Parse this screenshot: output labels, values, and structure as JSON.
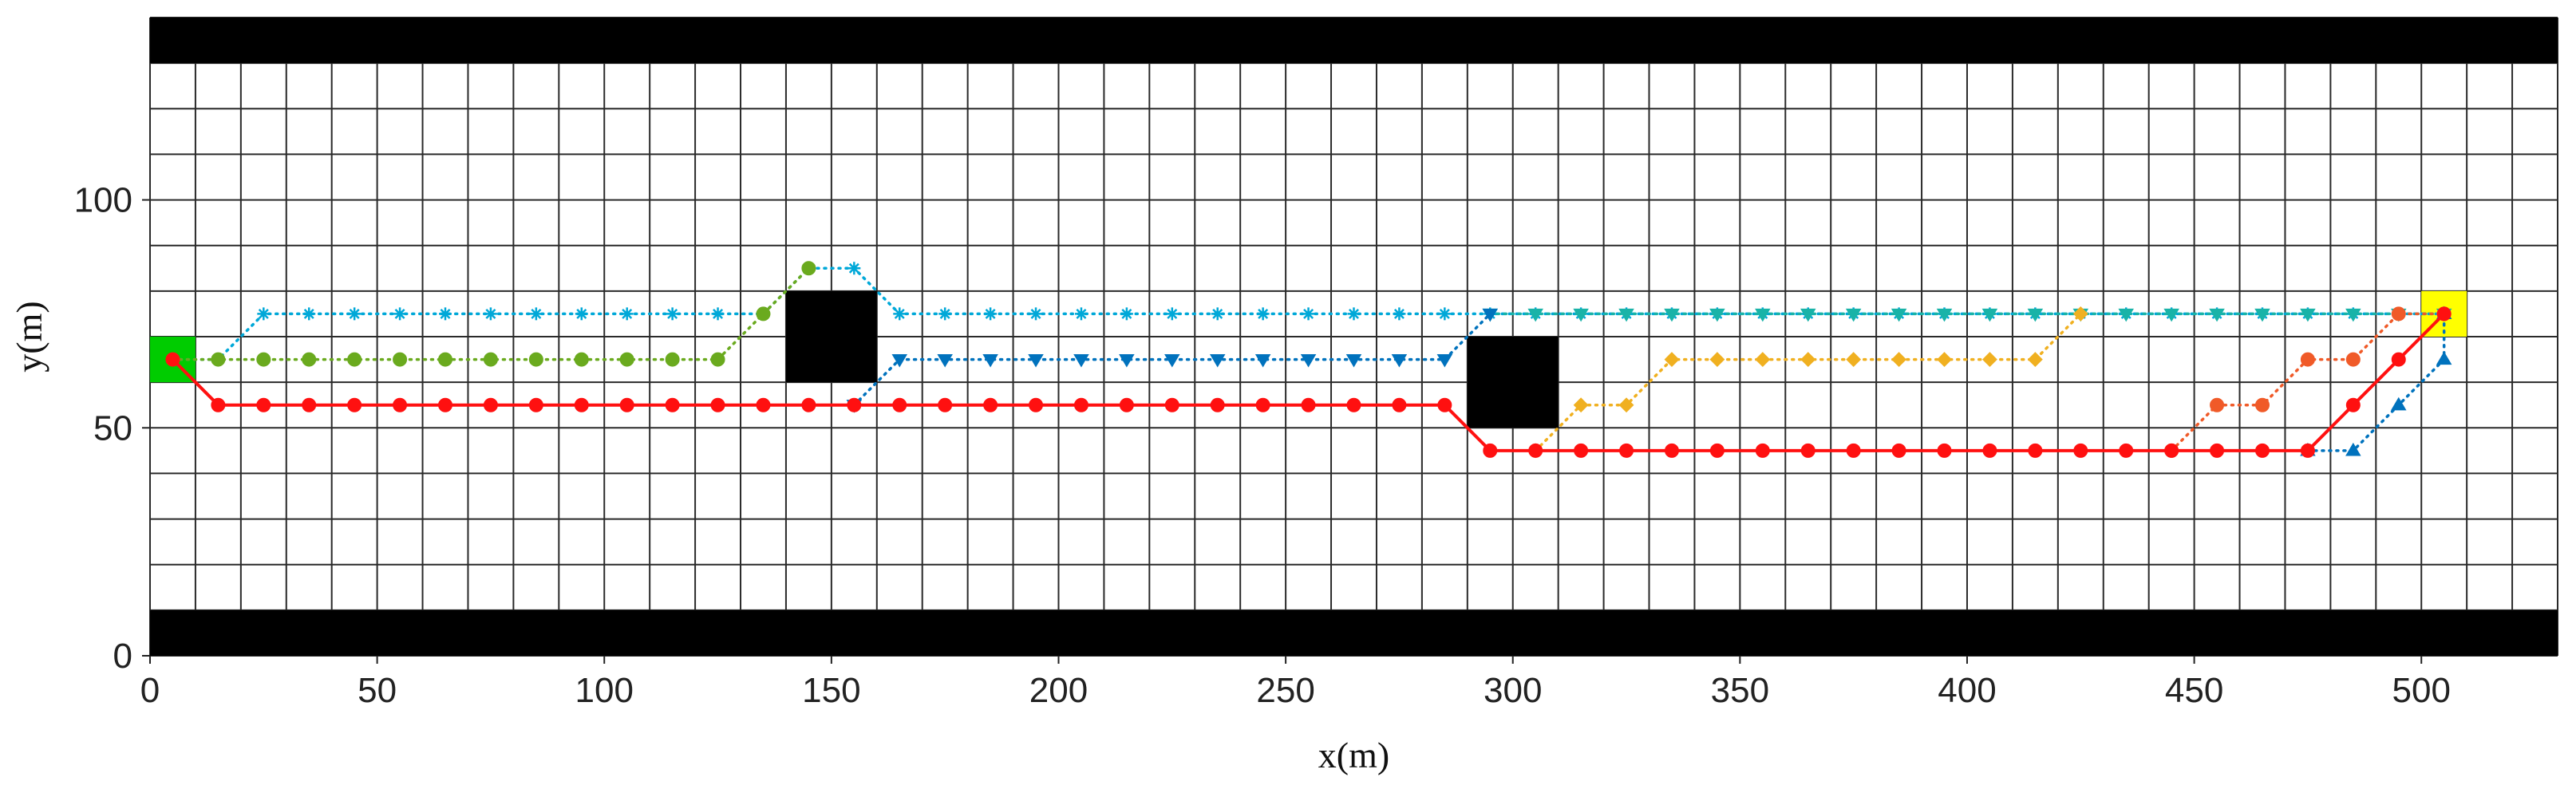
{
  "chart_data": {
    "type": "line",
    "title": "",
    "xlabel": "x(m)",
    "ylabel": "y(m)",
    "xlim": [
      0,
      530
    ],
    "ylim": [
      0,
      140
    ],
    "grid": true,
    "grid_step": 10,
    "xticks": [
      0,
      50,
      100,
      150,
      200,
      250,
      300,
      350,
      400,
      450,
      500
    ],
    "yticks": [
      0,
      50,
      100
    ],
    "obstacles": [
      {
        "name": "bottom-wall",
        "x": [
          0,
          530
        ],
        "y": [
          0,
          10
        ],
        "color": "#000000"
      },
      {
        "name": "top-wall",
        "x": [
          0,
          530
        ],
        "y": [
          130,
          140
        ],
        "color": "#000000"
      },
      {
        "name": "obstacle-1",
        "x": [
          140,
          160
        ],
        "y": [
          60,
          80
        ],
        "color": "#000000"
      },
      {
        "name": "obstacle-2",
        "x": [
          290,
          310
        ],
        "y": [
          50,
          70
        ],
        "color": "#000000"
      }
    ],
    "start": {
      "x": [
        0,
        10
      ],
      "y": [
        60,
        70
      ],
      "color": "#00cc00"
    },
    "goal": {
      "x": [
        500,
        510
      ],
      "y": [
        70,
        80
      ],
      "color": "#ffff00"
    },
    "series": [
      {
        "color": "#00a8d8",
        "style": "dotted",
        "marker": "star",
        "points": [
          [
            5,
            65
          ],
          [
            15,
            65
          ],
          [
            25,
            75
          ],
          [
            35,
            75
          ],
          [
            45,
            75
          ],
          [
            55,
            75
          ],
          [
            65,
            75
          ],
          [
            75,
            75
          ],
          [
            85,
            75
          ],
          [
            95,
            75
          ],
          [
            105,
            75
          ],
          [
            115,
            75
          ],
          [
            125,
            75
          ],
          [
            135,
            75
          ],
          [
            145,
            85
          ],
          [
            155,
            85
          ],
          [
            165,
            75
          ],
          [
            175,
            75
          ],
          [
            185,
            75
          ],
          [
            195,
            75
          ],
          [
            205,
            75
          ],
          [
            215,
            75
          ],
          [
            225,
            75
          ],
          [
            235,
            75
          ],
          [
            245,
            75
          ],
          [
            255,
            75
          ],
          [
            265,
            75
          ],
          [
            275,
            75
          ],
          [
            285,
            75
          ],
          [
            295,
            75
          ],
          [
            305,
            75
          ],
          [
            315,
            75
          ],
          [
            325,
            75
          ],
          [
            335,
            75
          ],
          [
            345,
            75
          ],
          [
            355,
            75
          ],
          [
            365,
            75
          ],
          [
            375,
            75
          ],
          [
            385,
            75
          ],
          [
            395,
            75
          ],
          [
            405,
            75
          ],
          [
            415,
            75
          ],
          [
            425,
            75
          ],
          [
            435,
            75
          ],
          [
            445,
            75
          ],
          [
            455,
            75
          ],
          [
            465,
            75
          ],
          [
            475,
            75
          ],
          [
            485,
            75
          ],
          [
            495,
            75
          ],
          [
            505,
            75
          ]
        ]
      },
      {
        "color": "#19b3a8",
        "style": "dotted",
        "marker": "triangle-down",
        "points": [
          [
            295,
            75
          ],
          [
            305,
            75
          ],
          [
            315,
            75
          ],
          [
            325,
            75
          ],
          [
            335,
            75
          ],
          [
            345,
            75
          ],
          [
            355,
            75
          ],
          [
            365,
            75
          ],
          [
            375,
            75
          ],
          [
            385,
            75
          ],
          [
            395,
            75
          ],
          [
            405,
            75
          ],
          [
            415,
            75
          ],
          [
            425,
            75
          ],
          [
            435,
            75
          ],
          [
            445,
            75
          ],
          [
            455,
            75
          ],
          [
            465,
            75
          ],
          [
            475,
            75
          ],
          [
            485,
            75
          ],
          [
            495,
            75
          ],
          [
            505,
            75
          ]
        ]
      },
      {
        "color": "#6aaa1e",
        "style": "dotted",
        "marker": "circle",
        "points": [
          [
            5,
            65
          ],
          [
            15,
            65
          ],
          [
            25,
            65
          ],
          [
            35,
            65
          ],
          [
            45,
            65
          ],
          [
            55,
            65
          ],
          [
            65,
            65
          ],
          [
            75,
            65
          ],
          [
            85,
            65
          ],
          [
            95,
            65
          ],
          [
            105,
            65
          ],
          [
            115,
            65
          ],
          [
            125,
            65
          ],
          [
            135,
            75
          ],
          [
            145,
            85
          ]
        ]
      },
      {
        "color": "#0072bd",
        "style": "dotted",
        "marker": "triangle-down",
        "points": [
          [
            155,
            55
          ],
          [
            165,
            65
          ],
          [
            175,
            65
          ],
          [
            185,
            65
          ],
          [
            195,
            65
          ],
          [
            205,
            65
          ],
          [
            215,
            65
          ],
          [
            225,
            65
          ],
          [
            235,
            65
          ],
          [
            245,
            65
          ],
          [
            255,
            65
          ],
          [
            265,
            65
          ],
          [
            275,
            65
          ],
          [
            285,
            65
          ],
          [
            295,
            75
          ]
        ]
      },
      {
        "color": "#f0b020",
        "style": "dotted",
        "marker": "diamond",
        "points": [
          [
            305,
            45
          ],
          [
            315,
            55
          ],
          [
            325,
            55
          ],
          [
            335,
            65
          ],
          [
            345,
            65
          ],
          [
            355,
            65
          ],
          [
            365,
            65
          ],
          [
            375,
            65
          ],
          [
            385,
            65
          ],
          [
            395,
            65
          ],
          [
            405,
            65
          ],
          [
            415,
            65
          ],
          [
            425,
            75
          ]
        ]
      },
      {
        "color": "#f05a28",
        "style": "dotted",
        "marker": "circle",
        "points": [
          [
            445,
            45
          ],
          [
            455,
            55
          ],
          [
            465,
            55
          ],
          [
            475,
            65
          ],
          [
            485,
            65
          ],
          [
            495,
            75
          ],
          [
            505,
            75
          ]
        ]
      },
      {
        "color": "#0072bd",
        "style": "dotted",
        "marker": "triangle-up",
        "points": [
          [
            475,
            45
          ],
          [
            485,
            45
          ],
          [
            495,
            55
          ],
          [
            505,
            65
          ],
          [
            505,
            75
          ]
        ]
      },
      {
        "color": "#ff1010",
        "style": "solid",
        "marker": "circle",
        "points": [
          [
            5,
            65
          ],
          [
            15,
            55
          ],
          [
            25,
            55
          ],
          [
            35,
            55
          ],
          [
            45,
            55
          ],
          [
            55,
            55
          ],
          [
            65,
            55
          ],
          [
            75,
            55
          ],
          [
            85,
            55
          ],
          [
            95,
            55
          ],
          [
            105,
            55
          ],
          [
            115,
            55
          ],
          [
            125,
            55
          ],
          [
            135,
            55
          ],
          [
            145,
            55
          ],
          [
            155,
            55
          ],
          [
            165,
            55
          ],
          [
            175,
            55
          ],
          [
            185,
            55
          ],
          [
            195,
            55
          ],
          [
            205,
            55
          ],
          [
            215,
            55
          ],
          [
            225,
            55
          ],
          [
            235,
            55
          ],
          [
            245,
            55
          ],
          [
            255,
            55
          ],
          [
            265,
            55
          ],
          [
            275,
            55
          ],
          [
            285,
            55
          ],
          [
            295,
            45
          ],
          [
            305,
            45
          ],
          [
            315,
            45
          ],
          [
            325,
            45
          ],
          [
            335,
            45
          ],
          [
            345,
            45
          ],
          [
            355,
            45
          ],
          [
            365,
            45
          ],
          [
            375,
            45
          ],
          [
            385,
            45
          ],
          [
            395,
            45
          ],
          [
            405,
            45
          ],
          [
            415,
            45
          ],
          [
            425,
            45
          ],
          [
            435,
            45
          ],
          [
            445,
            45
          ],
          [
            455,
            45
          ],
          [
            465,
            45
          ],
          [
            475,
            45
          ],
          [
            485,
            55
          ],
          [
            495,
            65
          ],
          [
            505,
            75
          ]
        ]
      }
    ]
  }
}
